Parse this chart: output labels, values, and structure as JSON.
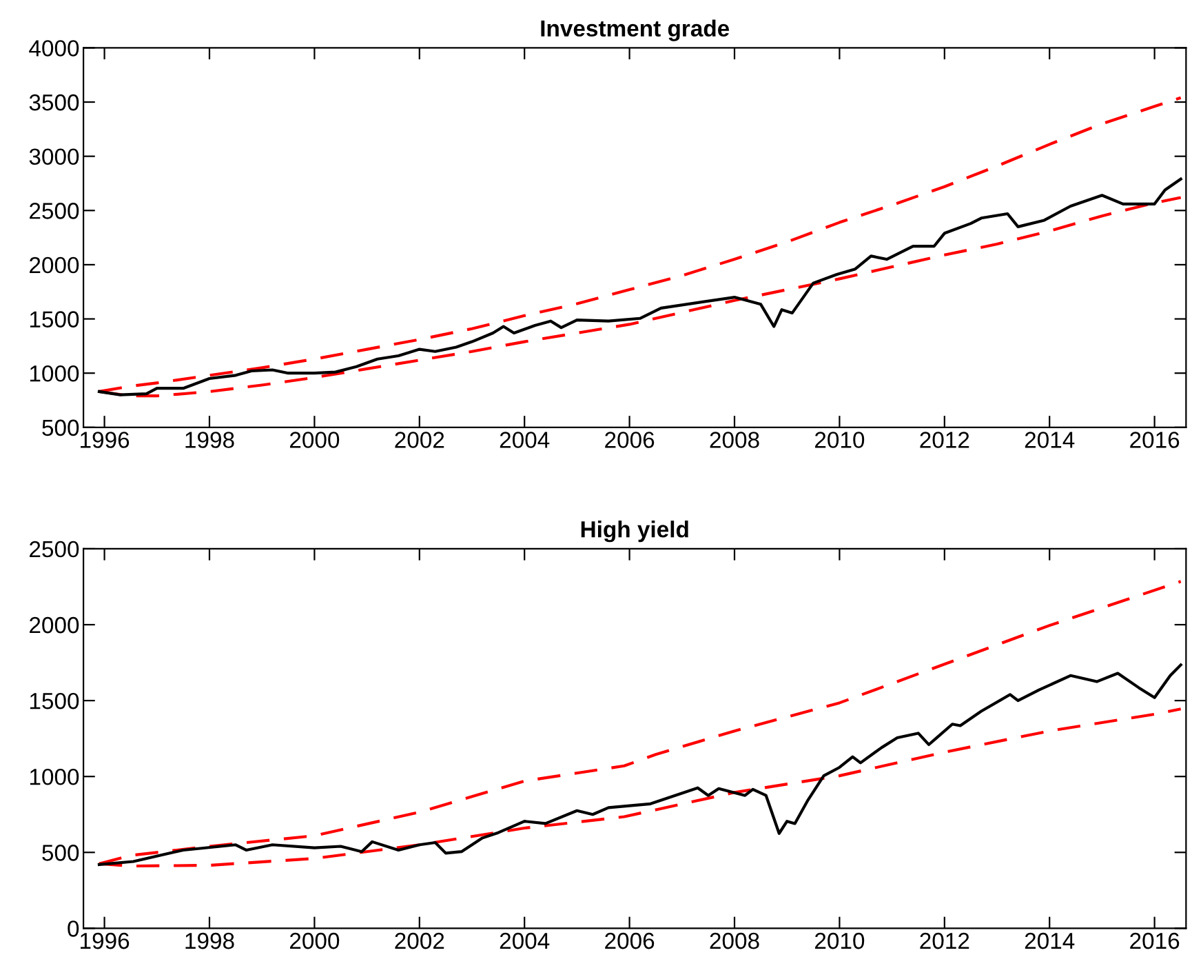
{
  "chart_data": [
    {
      "type": "line",
      "title": "Investment grade",
      "xlim": [
        1995.6,
        2016.6
      ],
      "xticks": [
        1996,
        1998,
        2000,
        2002,
        2004,
        2006,
        2008,
        2010,
        2012,
        2014,
        2016
      ],
      "ylim": [
        500,
        4000
      ],
      "yticks": [
        500,
        1000,
        1500,
        2000,
        2500,
        3000,
        3500,
        4000
      ],
      "grid": false,
      "legend": false,
      "series": [
        {
          "color": "#ff0000",
          "line_style": "dashed",
          "x": [
            1995.9,
            1996.5,
            1997,
            1998,
            1999,
            2000,
            2001,
            2002,
            2003,
            2004,
            2005,
            2006,
            2007,
            2008,
            2009,
            2010,
            2011,
            2012,
            2013,
            2014,
            2015,
            2016,
            2016.5
          ],
          "values": [
            830,
            880,
            910,
            980,
            1050,
            1130,
            1220,
            1310,
            1410,
            1530,
            1640,
            1770,
            1900,
            2050,
            2210,
            2390,
            2550,
            2720,
            2910,
            3110,
            3300,
            3460,
            3540
          ]
        },
        {
          "color": "#ff0000",
          "line_style": "dashed",
          "x": [
            1995.9,
            1996.5,
            1997,
            1998,
            1999,
            2000,
            2001,
            2002,
            2003,
            2004,
            2005,
            2006,
            2007,
            2008,
            2009,
            2010,
            2011,
            2012,
            2013,
            2014,
            2015,
            2016,
            2016.5
          ],
          "values": [
            830,
            790,
            790,
            830,
            890,
            960,
            1040,
            1120,
            1200,
            1290,
            1370,
            1450,
            1560,
            1670,
            1770,
            1870,
            1980,
            2090,
            2190,
            2310,
            2450,
            2570,
            2620
          ]
        },
        {
          "color": "#000000",
          "line_style": "solid",
          "x": [
            1995.9,
            1996.3,
            1996.8,
            1997.0,
            1997.5,
            1998.0,
            1998.5,
            1998.8,
            1999.2,
            1999.5,
            2000.0,
            2000.4,
            2000.8,
            2001.2,
            2001.6,
            2002.0,
            2002.3,
            2002.7,
            2003.0,
            2003.4,
            2003.6,
            2003.8,
            2004.2,
            2004.5,
            2004.7,
            2005.0,
            2005.6,
            2006.2,
            2006.6,
            2008.0,
            2008.5,
            2008.75,
            2008.9,
            2009.1,
            2009.5,
            2009.95,
            2010.3,
            2010.6,
            2010.9,
            2011.4,
            2011.8,
            2012.0,
            2012.5,
            2012.7,
            2013.2,
            2013.4,
            2013.9,
            2014.4,
            2015.0,
            2015.4,
            2016.0,
            2016.2,
            2016.5
          ],
          "values": [
            830,
            800,
            810,
            860,
            860,
            950,
            980,
            1020,
            1030,
            1000,
            1000,
            1010,
            1060,
            1130,
            1160,
            1220,
            1200,
            1240,
            1290,
            1370,
            1430,
            1370,
            1440,
            1480,
            1420,
            1490,
            1480,
            1505,
            1600,
            1700,
            1635,
            1430,
            1585,
            1555,
            1830,
            1910,
            1960,
            2080,
            2050,
            2170,
            2170,
            2290,
            2380,
            2430,
            2470,
            2350,
            2410,
            2540,
            2640,
            2560,
            2560,
            2690,
            2790
          ]
        }
      ]
    },
    {
      "type": "line",
      "title": "High yield",
      "xlim": [
        1995.6,
        2016.6
      ],
      "xticks": [
        1996,
        1998,
        2000,
        2002,
        2004,
        2006,
        2008,
        2010,
        2012,
        2014,
        2016
      ],
      "ylim": [
        0,
        2500
      ],
      "yticks": [
        0,
        500,
        1000,
        1500,
        2000,
        2500
      ],
      "grid": false,
      "legend": false,
      "series": [
        {
          "color": "#ff0000",
          "line_style": "dashed",
          "x": [
            1995.9,
            1996.5,
            1998,
            2000,
            2002,
            2004,
            2005.9,
            2006.5,
            2008,
            2010,
            2012,
            2014,
            2016.5
          ],
          "values": [
            425,
            480,
            540,
            610,
            765,
            970,
            1070,
            1145,
            1300,
            1485,
            1740,
            1995,
            2285
          ]
        },
        {
          "color": "#ff0000",
          "line_style": "dashed",
          "x": [
            1995.9,
            1996.5,
            1998,
            2000,
            2002,
            2004,
            2005.9,
            2008,
            2010,
            2012,
            2014,
            2016,
            2016.5
          ],
          "values": [
            425,
            410,
            415,
            460,
            550,
            660,
            735,
            895,
            1005,
            1160,
            1300,
            1410,
            1445
          ]
        },
        {
          "color": "#000000",
          "line_style": "solid",
          "x": [
            1995.9,
            1996.55,
            1997.5,
            1998.5,
            1998.7,
            1999.2,
            2000.0,
            2000.5,
            2000.9,
            2001.1,
            2001.6,
            2002.0,
            2002.3,
            2002.5,
            2002.8,
            2003.2,
            2003.5,
            2004.0,
            2004.4,
            2005.0,
            2005.3,
            2005.6,
            2006.4,
            2007.3,
            2007.5,
            2007.7,
            2008.2,
            2008.35,
            2008.6,
            2008.85,
            2009.0,
            2009.15,
            2009.4,
            2009.7,
            2010.0,
            2010.25,
            2010.4,
            2010.8,
            2011.1,
            2011.5,
            2011.7,
            2011.85,
            2012.15,
            2012.3,
            2012.7,
            2013.25,
            2013.4,
            2013.8,
            2014.4,
            2014.9,
            2015.3,
            2015.7,
            2016.0,
            2016.3,
            2016.5
          ],
          "values": [
            420,
            440,
            515,
            550,
            515,
            550,
            530,
            540,
            505,
            570,
            515,
            550,
            565,
            495,
            505,
            595,
            630,
            705,
            690,
            775,
            750,
            795,
            820,
            925,
            875,
            920,
            875,
            915,
            875,
            625,
            705,
            690,
            845,
            1005,
            1060,
            1130,
            1090,
            1190,
            1255,
            1285,
            1210,
            1255,
            1345,
            1335,
            1430,
            1540,
            1500,
            1570,
            1665,
            1625,
            1680,
            1585,
            1520,
            1665,
            1735
          ]
        }
      ]
    }
  ]
}
